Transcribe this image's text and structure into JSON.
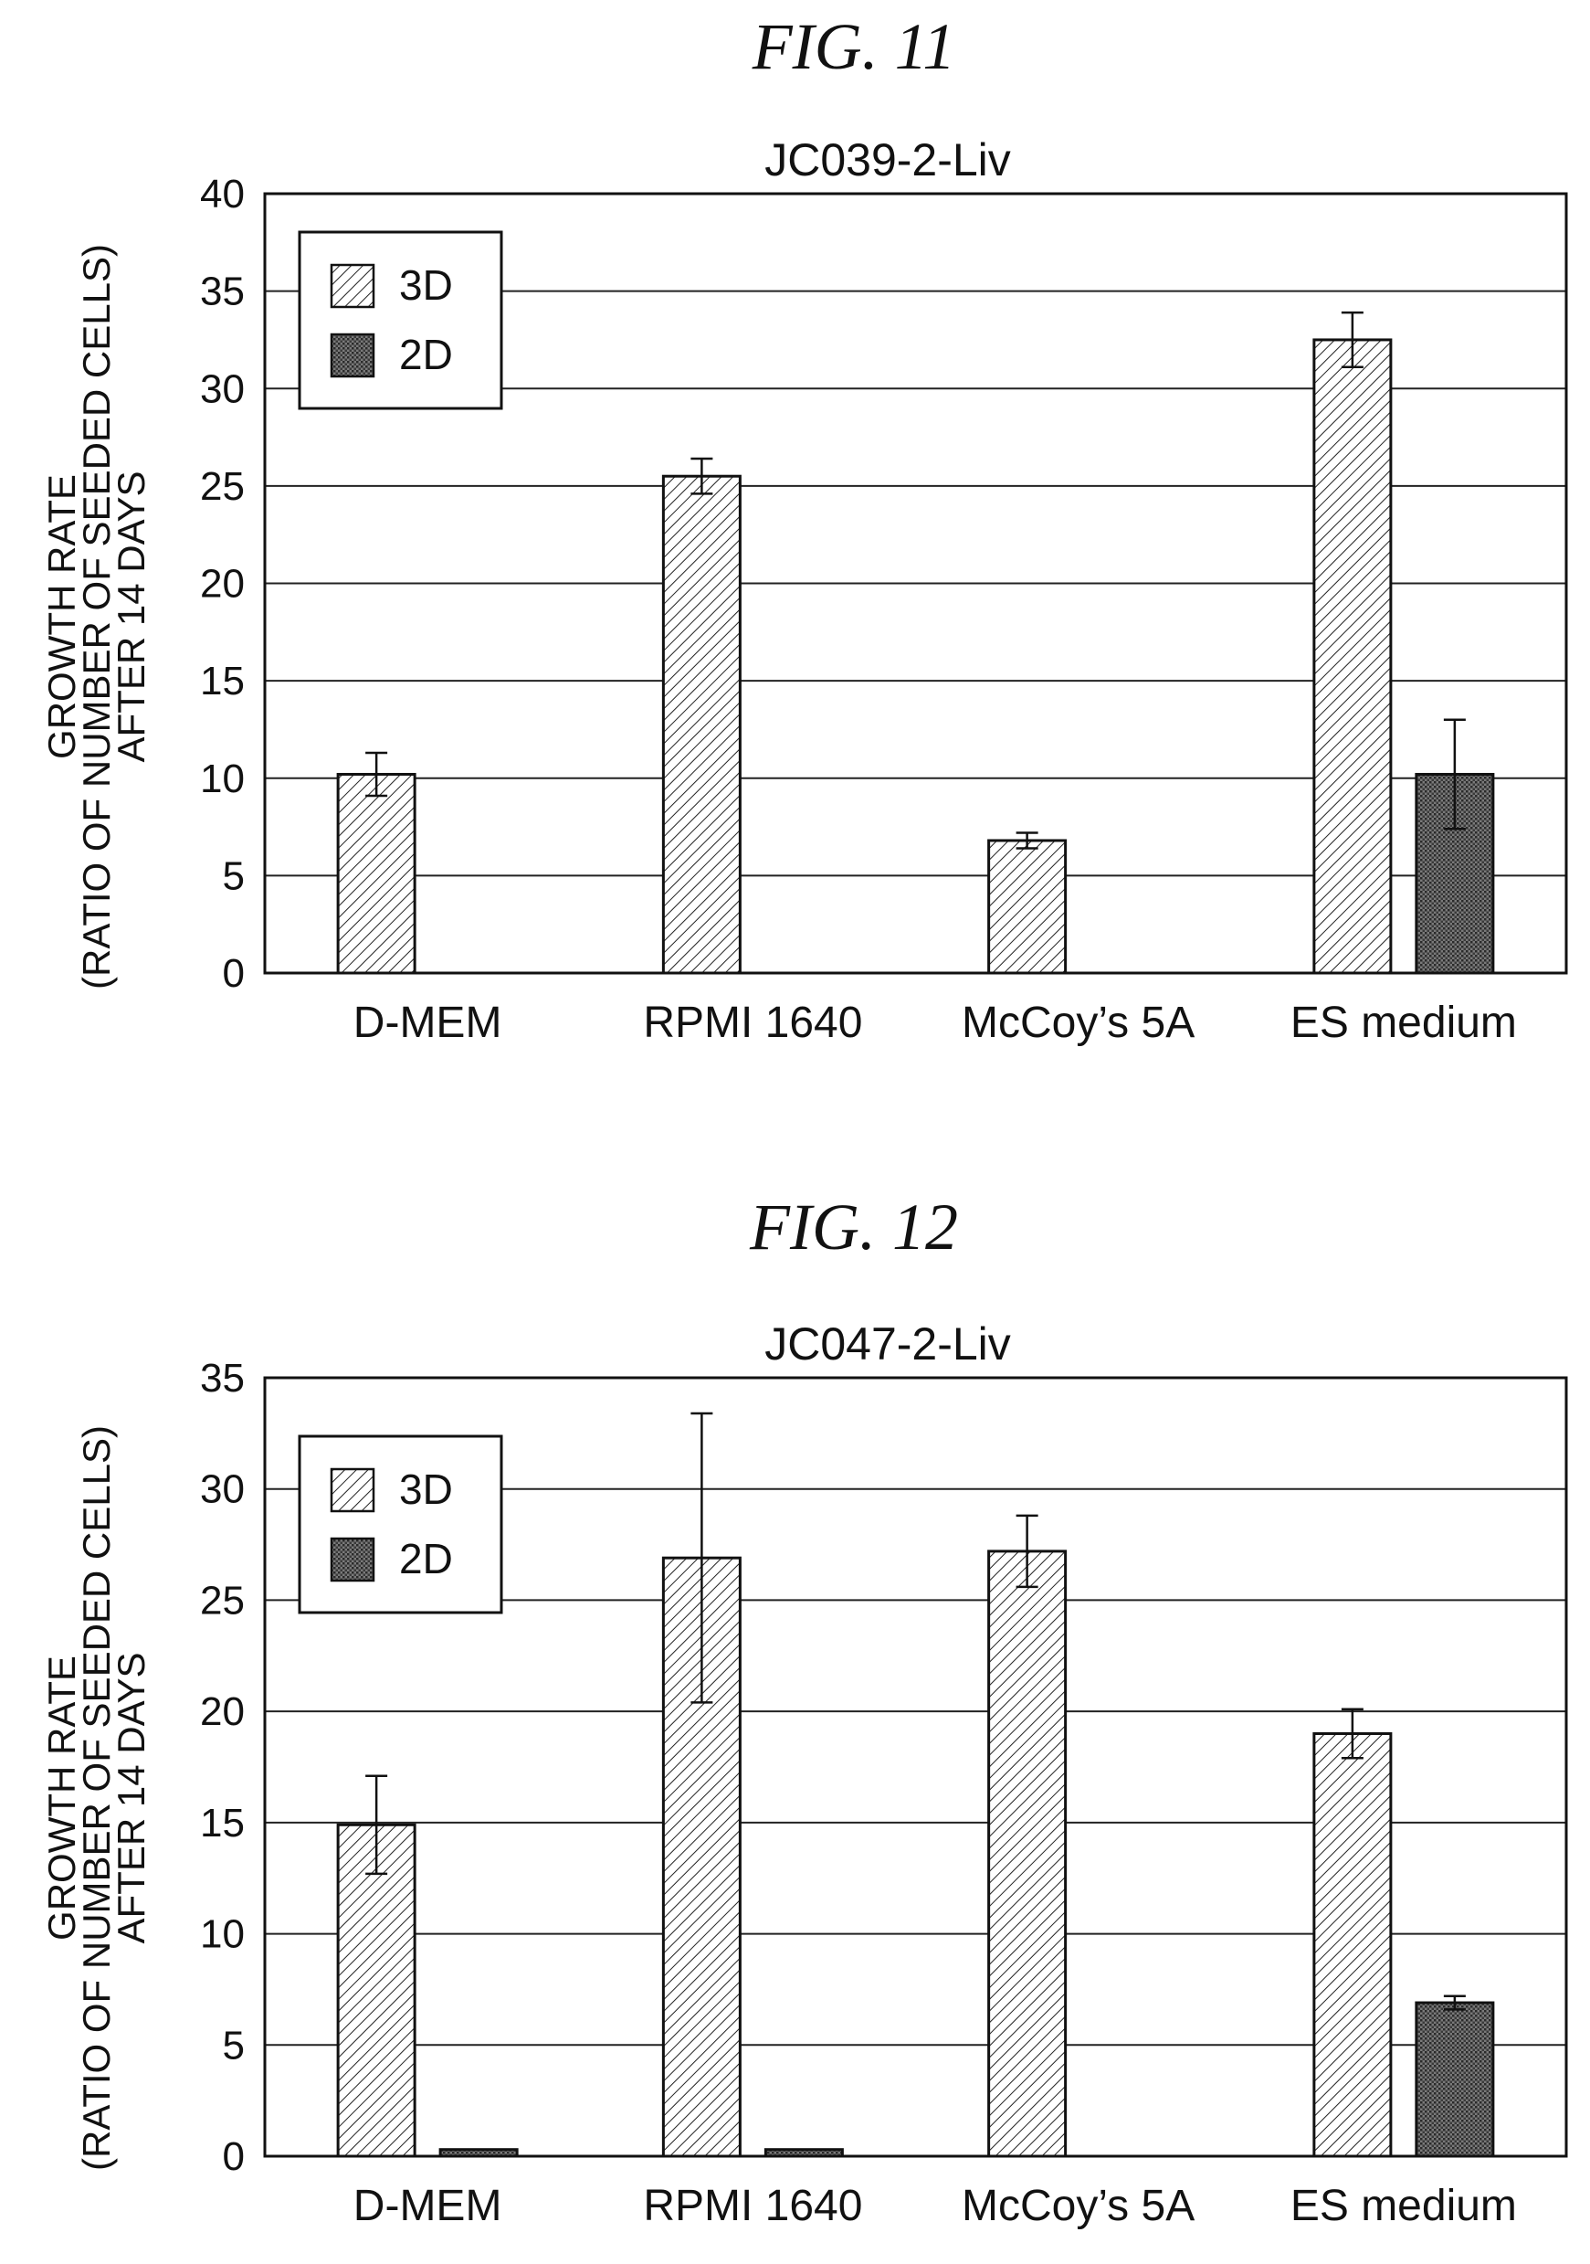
{
  "figures": [
    {
      "figure_label": "FIG. 11",
      "chart_data": {
        "type": "bar",
        "title": "JC039-2-Liv",
        "ylabel_lines": [
          "GROWTH RATE",
          "(RATIO OF NUMBER OF SEEDED CELLS)",
          "AFTER 14 DAYS"
        ],
        "xlabel": "",
        "categories": [
          "D-MEM",
          "RPMI 1640",
          "McCoy’s 5A",
          "ES medium"
        ],
        "ylim": [
          0,
          40
        ],
        "yticks": [
          0,
          5,
          10,
          15,
          20,
          25,
          30,
          35,
          40
        ],
        "grid": true,
        "legend_position": "top-left",
        "series": [
          {
            "name": "3D",
            "fill": "hatch",
            "values": [
              10.2,
              25.5,
              6.8,
              32.5
            ],
            "errors": [
              1.1,
              0.9,
              0.4,
              1.4
            ]
          },
          {
            "name": "2D",
            "fill": "dots",
            "values": [
              0,
              0,
              0,
              10.2
            ],
            "errors": [
              0,
              0,
              0,
              2.8
            ]
          }
        ]
      }
    },
    {
      "figure_label": "FIG. 12",
      "chart_data": {
        "type": "bar",
        "title": "JC047-2-Liv",
        "ylabel_lines": [
          "GROWTH RATE",
          "(RATIO OF NUMBER OF SEEDED CELLS)",
          "AFTER 14 DAYS"
        ],
        "xlabel": "",
        "categories": [
          "D-MEM",
          "RPMI 1640",
          "McCoy’s 5A",
          "ES medium"
        ],
        "ylim": [
          0,
          35
        ],
        "yticks": [
          0,
          5,
          10,
          15,
          20,
          25,
          30,
          35
        ],
        "grid": true,
        "legend_position": "top-left",
        "series": [
          {
            "name": "3D",
            "fill": "hatch",
            "values": [
              14.9,
              26.9,
              27.2,
              19.0
            ],
            "errors": [
              2.2,
              6.5,
              1.6,
              1.1
            ]
          },
          {
            "name": "2D",
            "fill": "dots",
            "values": [
              0.3,
              0.3,
              0,
              6.9
            ],
            "errors": [
              0,
              0,
              0,
              0.3
            ]
          }
        ]
      }
    }
  ]
}
